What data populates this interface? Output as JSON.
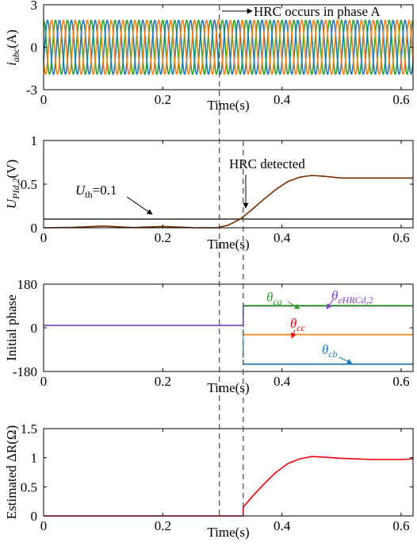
{
  "colors": {
    "phase_a": "#2ca02c",
    "phase_b": "#1f77b4",
    "phase_c": "#ff7f0e",
    "red": "#e8000b",
    "brown": "#7b2d00",
    "purple": "#7f3fbf",
    "black": "#000000",
    "grey": "#555555"
  },
  "markers": {
    "hrc_time": 0.295,
    "detect_time": 0.335
  },
  "chart_data": [
    {
      "type": "line",
      "id": "current",
      "ylabel_main": "i",
      "ylabel_sub": "abc",
      "ylabel_unit": "(A)",
      "xlabel": "Time(s)",
      "xlim": [
        0,
        0.62
      ],
      "ylim": [
        -3,
        3
      ],
      "xticks": [
        "0",
        "0.2",
        "0.4",
        "0.6"
      ],
      "yticks": [
        "3",
        "0",
        "-3"
      ],
      "series": [
        {
          "color_key": "phase_a",
          "amplitude": 1.9,
          "frequency_hz": 50,
          "phase_deg": 90
        },
        {
          "color_key": "phase_b",
          "amplitude": 1.9,
          "frequency_hz": 50,
          "phase_deg": -30
        },
        {
          "color_key": "phase_c",
          "amplitude": 1.9,
          "frequency_hz": 50,
          "phase_deg": 210
        }
      ],
      "annotation": "HRC occurs in phase A"
    },
    {
      "type": "line",
      "id": "upid",
      "ylabel_main": "U",
      "ylabel_sub": "PId,2",
      "ylabel_unit": "(V)",
      "xlabel": "Time(s)",
      "xlim": [
        0,
        0.62
      ],
      "ylim": [
        0,
        1
      ],
      "xticks": [
        "0",
        "0.2",
        "0.4",
        "0.6"
      ],
      "yticks": [
        "1",
        "0.5",
        "0"
      ],
      "threshold": 0.1,
      "threshold_label_main": "U",
      "threshold_label_sub": "th",
      "threshold_label_value": "=0.1",
      "annotation": "HRC detected",
      "series": [
        {
          "color_key": "brown",
          "x": [
            0,
            0.05,
            0.1,
            0.15,
            0.2,
            0.25,
            0.29,
            0.31,
            0.33,
            0.35,
            0.37,
            0.39,
            0.41,
            0.43,
            0.45,
            0.47,
            0.5,
            0.55,
            0.62
          ],
          "y": [
            0,
            0.005,
            0.02,
            0.003,
            0.015,
            0.002,
            0.0,
            0.03,
            0.1,
            0.21,
            0.33,
            0.44,
            0.53,
            0.58,
            0.6,
            0.59,
            0.57,
            0.57,
            0.57
          ]
        }
      ]
    },
    {
      "type": "line",
      "id": "phase",
      "ylabel": "Initial phase",
      "xlabel": "Time(s)",
      "xlim": [
        0,
        0.62
      ],
      "ylim": [
        -180,
        180
      ],
      "xticks": [
        "0",
        "0.2",
        "0.4",
        "0.6"
      ],
      "yticks": [
        "180",
        "0",
        "-180"
      ],
      "series": [
        {
          "color_key": "purple",
          "x": [
            0,
            0.335,
            0.335,
            0.62
          ],
          "y": [
            10,
            10,
            90,
            90
          ]
        },
        {
          "color_key": "phase_a",
          "x": [
            0.335,
            0.62
          ],
          "y": [
            92,
            92
          ]
        },
        {
          "color_key": "phase_c",
          "x": [
            0.335,
            0.62
          ],
          "y": [
            -28,
            -28
          ]
        },
        {
          "color_key": "phase_b",
          "x": [
            0.335,
            0.62
          ],
          "y": [
            -150,
            -150
          ]
        }
      ],
      "labels": [
        {
          "main": "θ",
          "sub": "ca",
          "color_key": "phase_a"
        },
        {
          "main": "θ",
          "sub": "eHRCd,2",
          "color_key": "purple"
        },
        {
          "main": "θ",
          "sub": "cc",
          "color_key": "red"
        },
        {
          "main": "θ",
          "sub": "cb",
          "color_key": "phase_b"
        }
      ]
    },
    {
      "type": "line",
      "id": "resistance",
      "ylabel": "Estimated ΔR(Ω)",
      "xlabel": "Time(s)",
      "xlim": [
        0,
        0.62
      ],
      "ylim": [
        0,
        1.5
      ],
      "xticks": [
        "0",
        "0.2",
        "0.4",
        "0.6"
      ],
      "yticks": [
        "1.5",
        "1",
        "0.5",
        "0"
      ],
      "series": [
        {
          "color_key": "red",
          "x": [
            0,
            0.335,
            0.335,
            0.35,
            0.37,
            0.39,
            0.41,
            0.43,
            0.45,
            0.47,
            0.5,
            0.55,
            0.6,
            0.62
          ],
          "y": [
            0,
            0,
            0.15,
            0.33,
            0.55,
            0.75,
            0.9,
            0.98,
            1.02,
            1.01,
            0.99,
            0.97,
            0.97,
            0.98
          ]
        }
      ]
    }
  ]
}
